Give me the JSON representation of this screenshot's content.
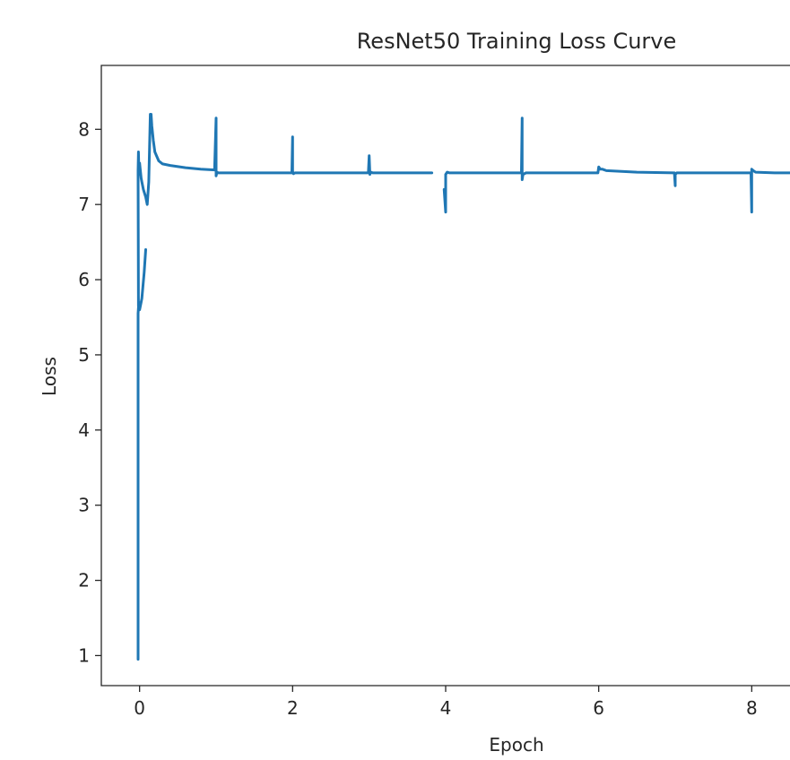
{
  "chart_data": {
    "type": "line",
    "title": "ResNet50 Training Loss Curve",
    "xlabel": "Epoch",
    "ylabel": "Loss",
    "xlim": [
      -0.5,
      8.5
    ],
    "ylim": [
      0.6,
      8.85
    ],
    "x_ticks": [
      0,
      2,
      4,
      6,
      8
    ],
    "y_ticks": [
      1,
      2,
      3,
      4,
      5,
      6,
      7,
      8
    ],
    "grid": false,
    "legend": "none",
    "color": "#1f77b4",
    "series": [
      {
        "segments": [
          {
            "x": [
              -0.02,
              -0.02,
              -0.01,
              -0.015,
              -0.02,
              -0.015,
              -0.01,
              0.01,
              0.0,
              0.02,
              0.03,
              0.05,
              0.08,
              0.1,
              0.12,
              0.14,
              0.15,
              0.16,
              0.18,
              0.2,
              0.25,
              0.3,
              0.4,
              0.6,
              0.8,
              0.98,
              1.0,
              1.0,
              1.01,
              1.03,
              1.1,
              1.3,
              1.6,
              1.99,
              2.0,
              2.0,
              2.01,
              2.03,
              2.1,
              2.5,
              2.99,
              3.0,
              3.01,
              3.02,
              3.05,
              3.3,
              3.6,
              3.82
            ],
            "y": [
              0.95,
              5.55,
              5.7,
              5.65,
              7.45,
              7.7,
              7.5,
              7.4,
              7.55,
              7.35,
              7.3,
              7.2,
              7.1,
              7.0,
              7.3,
              8.2,
              8.2,
              8.05,
              7.85,
              7.7,
              7.58,
              7.54,
              7.52,
              7.49,
              7.47,
              7.46,
              8.15,
              7.38,
              7.43,
              7.42,
              7.42,
              7.42,
              7.42,
              7.42,
              7.9,
              7.44,
              7.41,
              7.42,
              7.42,
              7.42,
              7.42,
              7.65,
              7.4,
              7.43,
              7.42,
              7.42,
              7.42,
              7.42
            ]
          },
          {
            "x": [
              0.0,
              0.02,
              0.03,
              0.06,
              0.08
            ],
            "y": [
              5.6,
              5.7,
              5.75,
              6.1,
              6.4
            ]
          },
          {
            "x": [
              3.98,
              4.0,
              4.0,
              4.02,
              4.05,
              4.2,
              4.5,
              4.99,
              5.0,
              5.0,
              5.01,
              5.05,
              5.3,
              5.7,
              5.99,
              6.0,
              6.02,
              6.05,
              6.1,
              6.5,
              6.99,
              7.0,
              7.0,
              7.02,
              7.1,
              7.5,
              7.99,
              8.0,
              8.0,
              8.02,
              8.05,
              8.3,
              8.5
            ],
            "y": [
              7.2,
              6.9,
              7.4,
              7.43,
              7.42,
              7.42,
              7.42,
              7.42,
              8.15,
              7.33,
              7.4,
              7.42,
              7.42,
              7.42,
              7.42,
              7.5,
              7.47,
              7.47,
              7.45,
              7.43,
              7.42,
              7.25,
              7.4,
              7.42,
              7.42,
              7.42,
              7.42,
              6.9,
              7.47,
              7.45,
              7.43,
              7.42,
              7.42
            ]
          }
        ]
      }
    ]
  }
}
